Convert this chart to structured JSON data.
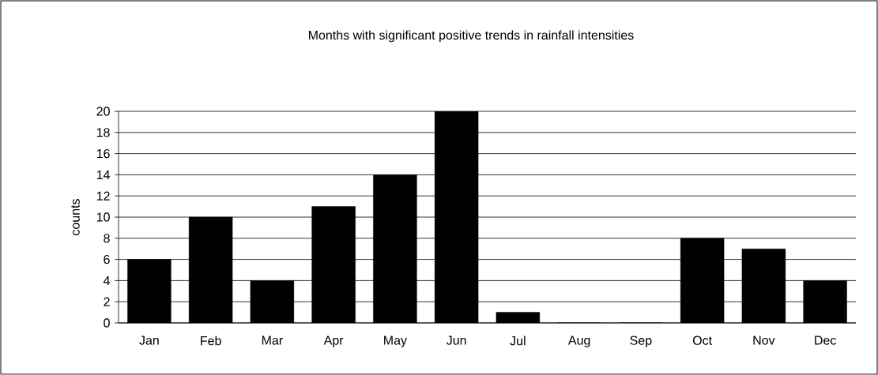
{
  "chart_data": {
    "type": "bar",
    "title": "Months with significant positive trends in rainfall intensities",
    "ylabel": "counts",
    "categories": [
      "Jan",
      "Feb",
      "Mar",
      "Apr",
      "May",
      "Jun",
      "Jul",
      "Aug",
      "Sep",
      "Oct",
      "Nov",
      "Dec"
    ],
    "values": [
      6,
      10,
      4,
      11,
      14,
      20,
      1,
      0,
      0,
      8,
      7,
      4
    ],
    "color": "#000000",
    "ylim": [
      0,
      20
    ],
    "yticks": [
      0,
      2,
      4,
      6,
      8,
      10,
      12,
      14,
      16,
      18,
      20
    ],
    "grid": "y"
  }
}
